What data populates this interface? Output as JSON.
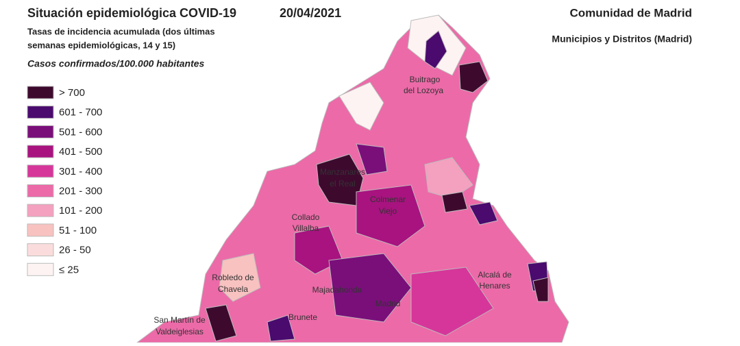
{
  "header": {
    "title": "Situación epidemiológica COVID-19",
    "date": "20/04/2021",
    "subtitle": [
      "Tasas de incidencia acumulada (dos últimas",
      "semanas epidemiológicas, 14 y 15)"
    ],
    "unit": "Casos confirmados/100.000 habitantes",
    "region": "Comunidad de Madrid",
    "scope": "Municipios y Distritos (Madrid)"
  },
  "legend": [
    {
      "label": "> 700",
      "color": "#3d0a2e"
    },
    {
      "label": "601 - 700",
      "color": "#4a0a6e"
    },
    {
      "label": "501 - 600",
      "color": "#7a0f7a"
    },
    {
      "label": "401 - 500",
      "color": "#a8137f"
    },
    {
      "label": "301 - 400",
      "color": "#d6369a"
    },
    {
      "label": "201 - 300",
      "color": "#ec6aa8"
    },
    {
      "label": "101 - 200",
      "color": "#f4a0bf"
    },
    {
      "label": "51 - 100",
      "color": "#f8c2c0"
    },
    {
      "label": "26 - 50",
      "color": "#fbdcdc"
    },
    {
      "label": "≤ 25",
      "color": "#fdf3f2"
    }
  ],
  "places": [
    [
      "Buitrago",
      "del Lozoya"
    ],
    [
      "Manzanares",
      "el Real"
    ],
    [
      "Colmenar",
      "Viejo"
    ],
    [
      "Collado",
      "Villalba"
    ],
    [
      "Robledo de",
      "Chavela"
    ],
    [
      "Majadahonda"
    ],
    [
      "Madrid"
    ],
    [
      "Alcalá de",
      "Henares"
    ],
    [
      "Brunete"
    ],
    [
      "San Martín de",
      "Valdeiglesias"
    ]
  ]
}
